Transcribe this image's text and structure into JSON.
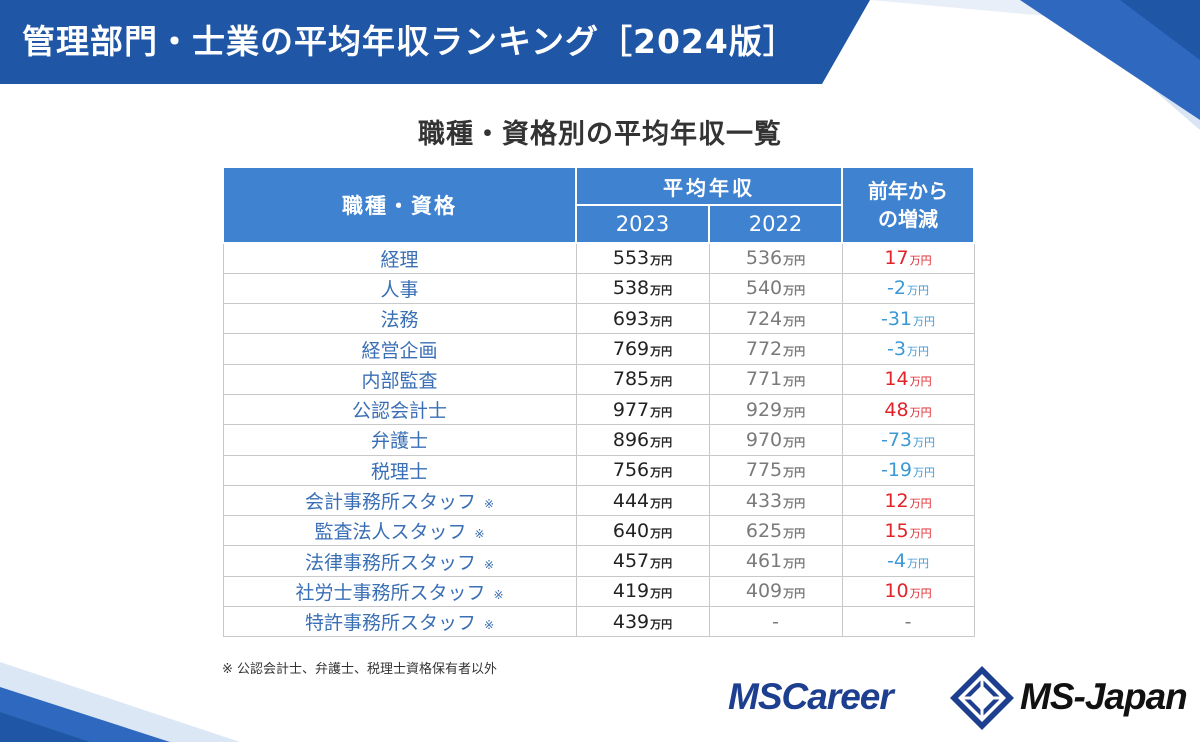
{
  "banner": {
    "title": "管理部門・士業の平均年収ランキング［2024版］"
  },
  "subtitle": "職種・資格別の平均年収一覧",
  "table": {
    "headers": {
      "job": "職種・資格",
      "avg": "平均年収",
      "year_2023": "2023",
      "year_2022": "2022",
      "diff_line1": "前年から",
      "diff_line2": "の増減"
    },
    "unit": "万円",
    "rows": [
      {
        "job": "経理",
        "mark": "",
        "v2023": "553",
        "v2022": "536",
        "diff": "17",
        "trend": "up"
      },
      {
        "job": "人事",
        "mark": "",
        "v2023": "538",
        "v2022": "540",
        "diff": "-2",
        "trend": "down"
      },
      {
        "job": "法務",
        "mark": "",
        "v2023": "693",
        "v2022": "724",
        "diff": "-31",
        "trend": "down"
      },
      {
        "job": "経営企画",
        "mark": "",
        "v2023": "769",
        "v2022": "772",
        "diff": "-3",
        "trend": "down"
      },
      {
        "job": "内部監査",
        "mark": "",
        "v2023": "785",
        "v2022": "771",
        "diff": "14",
        "trend": "up"
      },
      {
        "job": "公認会計士",
        "mark": "",
        "v2023": "977",
        "v2022": "929",
        "diff": "48",
        "trend": "up"
      },
      {
        "job": "弁護士",
        "mark": "",
        "v2023": "896",
        "v2022": "970",
        "diff": "-73",
        "trend": "down"
      },
      {
        "job": "税理士",
        "mark": "",
        "v2023": "756",
        "v2022": "775",
        "diff": "-19",
        "trend": "down"
      },
      {
        "job": "会計事務所スタッフ",
        "mark": "※",
        "v2023": "444",
        "v2022": "433",
        "diff": "12",
        "trend": "up"
      },
      {
        "job": "監査法人スタッフ",
        "mark": "※",
        "v2023": "640",
        "v2022": "625",
        "diff": "15",
        "trend": "up"
      },
      {
        "job": "法律事務所スタッフ",
        "mark": "※",
        "v2023": "457",
        "v2022": "461",
        "diff": "-4",
        "trend": "down"
      },
      {
        "job": "社労士事務所スタッフ",
        "mark": "※",
        "v2023": "419",
        "v2022": "409",
        "diff": "10",
        "trend": "up"
      },
      {
        "job": "特許事務所スタッフ",
        "mark": "※",
        "v2023": "439",
        "v2022": "-",
        "diff": "-",
        "trend": "none"
      }
    ]
  },
  "note": "※ 公認会計士、弁護士、税理士資格保有者以外",
  "logos": {
    "mscareer": "MSCareer",
    "msjapan": "MS-Japan"
  },
  "colors": {
    "banner_blue": "#1f56a6",
    "header_blue": "#3f82cf",
    "job_text": "#3a6fb5",
    "increase_red": "#e0242a",
    "decrease_blue": "#3c98d4"
  }
}
